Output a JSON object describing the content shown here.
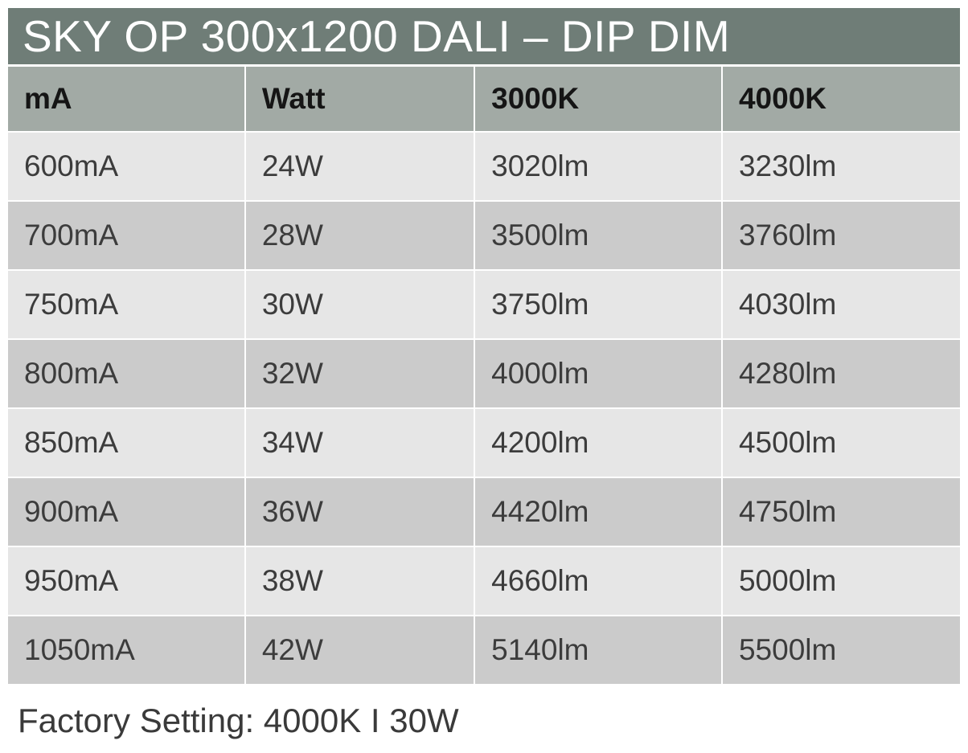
{
  "title": "SKY OP 300x1200 DALI – DIP DIM",
  "table": {
    "headers": [
      "mA",
      "Watt",
      "3000K",
      "4000K"
    ],
    "rows": [
      [
        "600mA",
        "24W",
        "3020lm",
        "3230lm"
      ],
      [
        "700mA",
        "28W",
        "3500lm",
        "3760lm"
      ],
      [
        "750mA",
        "30W",
        "3750lm",
        "4030lm"
      ],
      [
        "800mA",
        "32W",
        "4000lm",
        "4280lm"
      ],
      [
        "850mA",
        "34W",
        "4200lm",
        "4500lm"
      ],
      [
        "900mA",
        "36W",
        "4420lm",
        "4750lm"
      ],
      [
        "950mA",
        "38W",
        "4660lm",
        "5000lm"
      ],
      [
        "1050mA",
        "42W",
        "5140lm",
        "5500lm"
      ]
    ]
  },
  "footer": {
    "factory_setting": "Factory Setting: 4000K I 30W"
  },
  "colors": {
    "title_bar_bg": "#6f7d77",
    "title_text": "#ffffff",
    "header_row_bg": "#a2aaa5",
    "header_text": "#151515",
    "row_light_bg": "#e6e6e6",
    "row_dark_bg": "#cbcbcb",
    "cell_text": "#3c3c3c",
    "divider": "#ffffff"
  }
}
